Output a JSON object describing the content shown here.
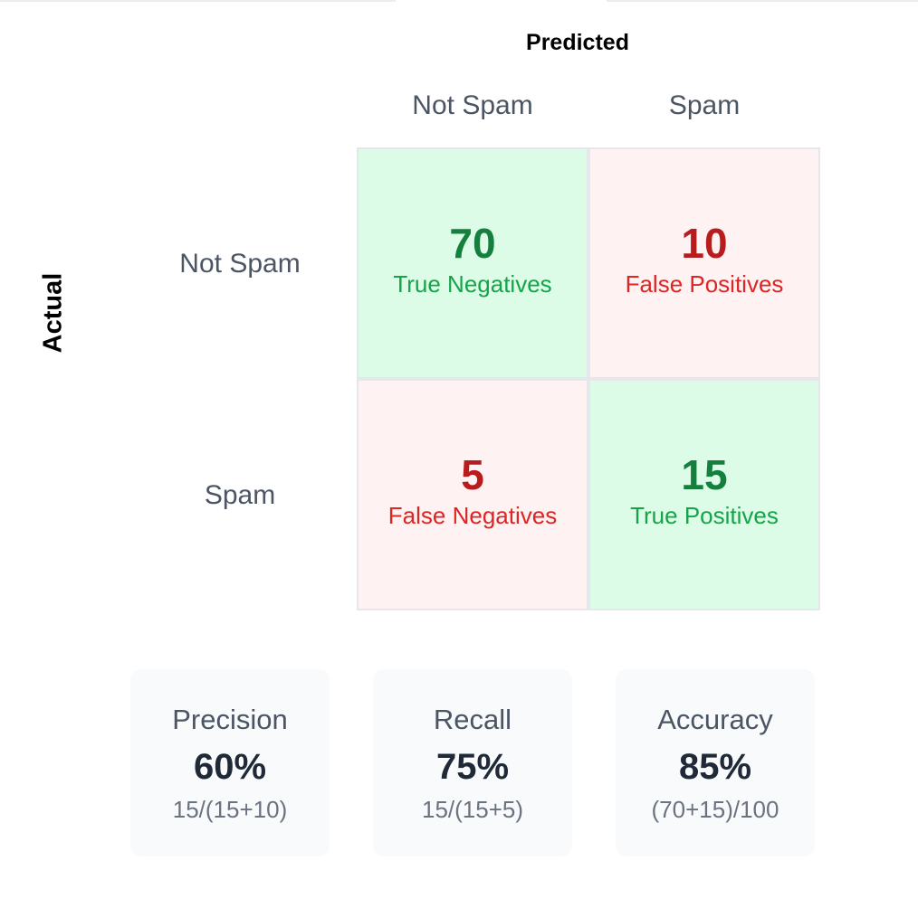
{
  "axes": {
    "predicted_title": "Predicted",
    "actual_title": "Actual"
  },
  "columns": [
    "Not Spam",
    "Spam"
  ],
  "rows": [
    "Not Spam",
    "Spam"
  ],
  "cells": [
    [
      {
        "count": "70",
        "label": "True Negatives",
        "kind": "correct"
      },
      {
        "count": "10",
        "label": "False Positives",
        "kind": "error"
      }
    ],
    [
      {
        "count": "5",
        "label": "False Negatives",
        "kind": "error"
      },
      {
        "count": "15",
        "label": "True Positives",
        "kind": "correct"
      }
    ]
  ],
  "metrics": [
    {
      "label": "Precision",
      "value": "60%",
      "formula": "15/(15+10)"
    },
    {
      "label": "Recall",
      "value": "75%",
      "formula": "15/(15+5)"
    },
    {
      "label": "Accuracy",
      "value": "85%",
      "formula": "(70+15)/100"
    }
  ],
  "colors": {
    "correct_bg": "#dcfce7",
    "correct_text": "#15803d",
    "error_bg": "#fef2f2",
    "error_text": "#b91c1c",
    "header_text": "#4b5563",
    "metric_bg": "#f8fafc"
  }
}
